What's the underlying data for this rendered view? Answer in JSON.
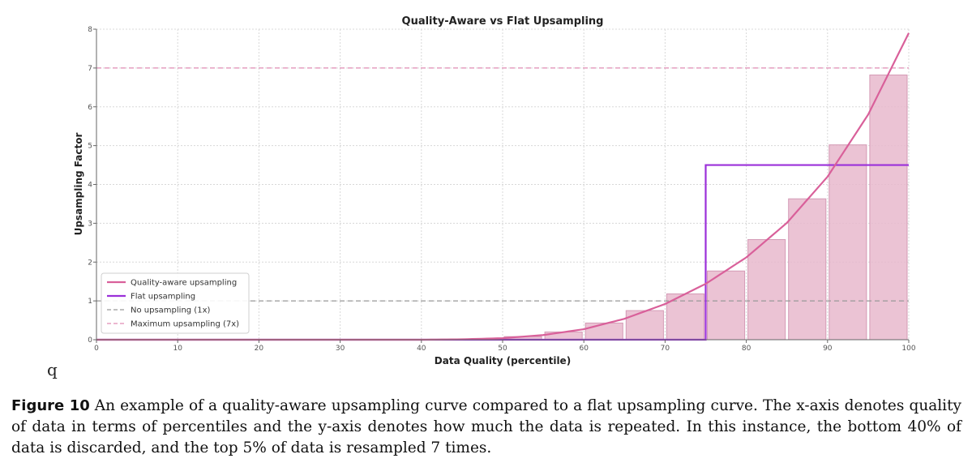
{
  "chart_data": {
    "type": "bar",
    "title": "Quality-Aware vs Flat Upsampling",
    "xlabel": "Data Quality (percentile)",
    "ylabel": "Upsampling Factor",
    "xlim": [
      0,
      100
    ],
    "ylim": [
      0,
      8
    ],
    "x_ticks": [
      "0",
      "10",
      "20",
      "30",
      "40",
      "50",
      "60",
      "70",
      "80",
      "90",
      "100"
    ],
    "y_ticks": [
      "0",
      "1",
      "2",
      "3",
      "4",
      "5",
      "6",
      "7",
      "8"
    ],
    "grid": true,
    "legend_position": "lower-left",
    "bars": {
      "bin_width": 5,
      "x_centers": [
        2.5,
        7.5,
        12.5,
        17.5,
        22.5,
        27.5,
        32.5,
        37.5,
        42.5,
        47.5,
        52.5,
        57.5,
        62.5,
        67.5,
        72.5,
        77.5,
        82.5,
        87.5,
        92.5,
        97.5
      ],
      "values": [
        0,
        0,
        0,
        0,
        0,
        0,
        0,
        0,
        0,
        0.02,
        0.08,
        0.2,
        0.43,
        0.75,
        1.18,
        1.77,
        2.58,
        3.63,
        5.02,
        6.82
      ],
      "color": "#e8b8cc"
    },
    "series": [
      {
        "name": "Quality-aware upsampling",
        "color": "#d9609a",
        "x": [
          0,
          10,
          20,
          30,
          40,
          45,
          50,
          55,
          60,
          65,
          70,
          75,
          80,
          85,
          90,
          95,
          100
        ],
        "y": [
          0,
          0,
          0,
          0,
          0,
          0.01,
          0.04,
          0.12,
          0.27,
          0.54,
          0.92,
          1.44,
          2.12,
          3.01,
          4.2,
          5.8,
          7.9
        ]
      },
      {
        "name": "Flat upsampling",
        "color": "#9b30d9",
        "x": [
          0,
          75,
          75,
          100
        ],
        "y": [
          0,
          0,
          4.5,
          4.5
        ]
      },
      {
        "name": "No upsampling (1x)",
        "color": "#999999",
        "dash": true,
        "x": [
          0,
          100
        ],
        "y": [
          1,
          1
        ]
      },
      {
        "name": "Maximum upsampling (7x)",
        "color": "#e08cb4",
        "dash": true,
        "x": [
          0,
          100
        ],
        "y": [
          7,
          7
        ]
      }
    ]
  },
  "stray_glyph": "q",
  "caption": {
    "label": "Figure 10",
    "text": "An example of a quality-aware upsampling curve compared to a flat upsampling curve. The x-axis denotes quality of data in terms of percentiles and the y-axis denotes how much the data is repeated. In this instance, the bottom 40% of data is discarded, and the top 5% of data is resampled 7 times."
  }
}
